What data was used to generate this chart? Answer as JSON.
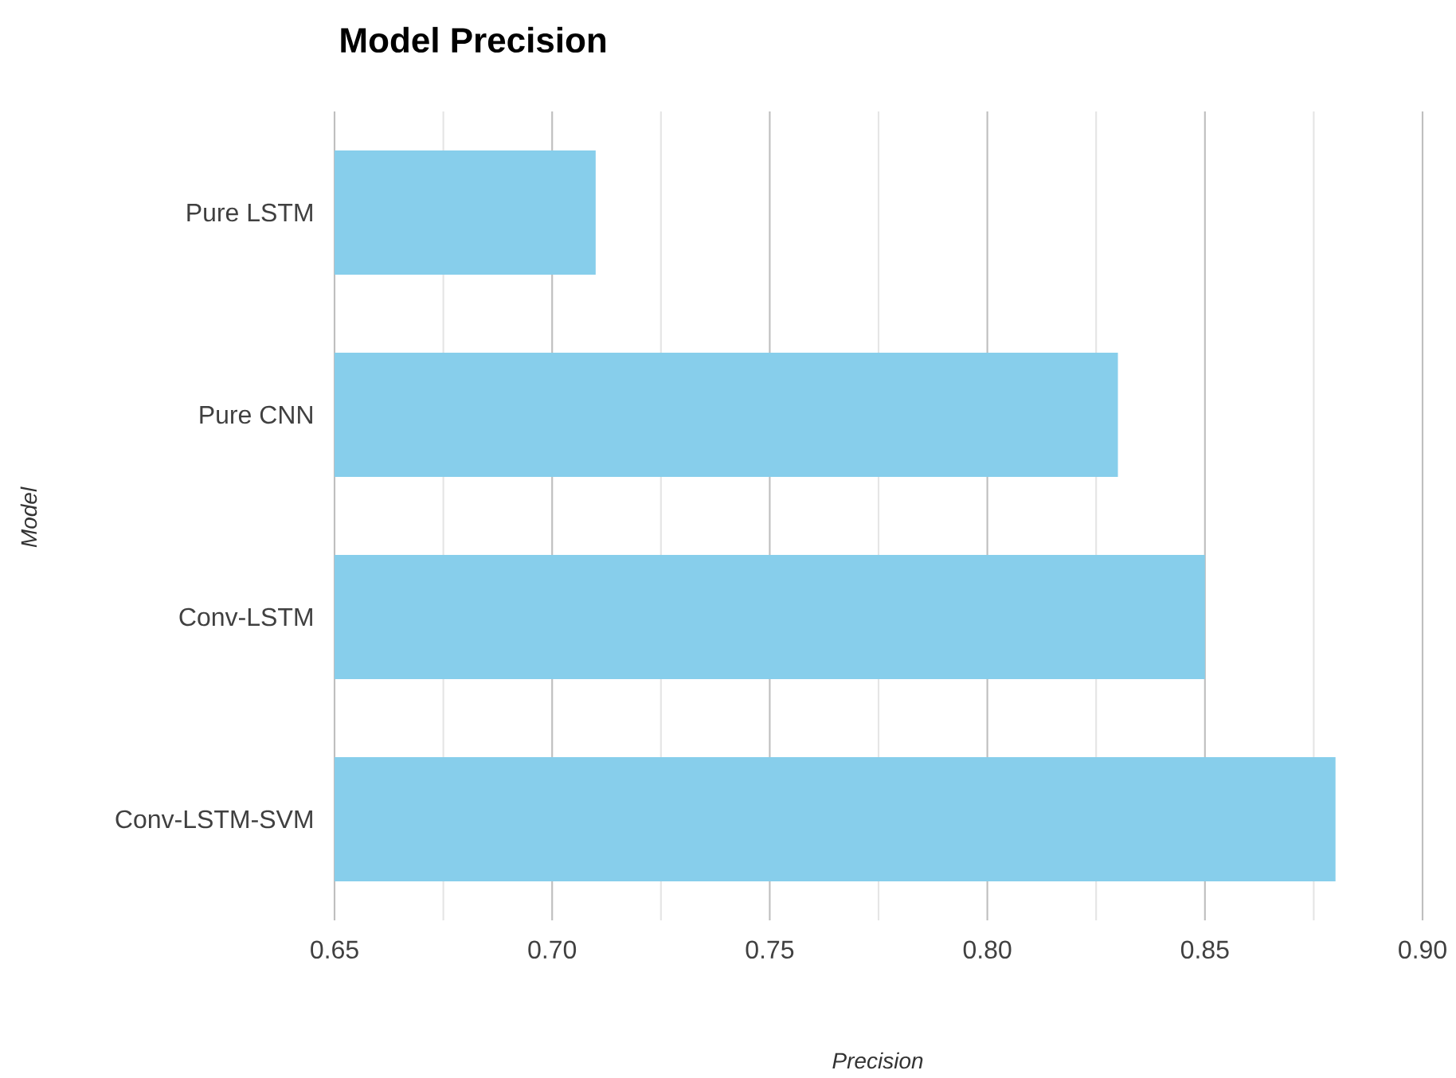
{
  "chart_data": {
    "type": "bar",
    "orientation": "horizontal",
    "title": "Model Precision",
    "xlabel": "Precision",
    "ylabel": "Model",
    "categories": [
      "Pure LSTM",
      "Pure CNN",
      "Conv-LSTM",
      "Conv-LSTM-SVM"
    ],
    "values": [
      0.71,
      0.83,
      0.85,
      0.88
    ],
    "color": "#87ceeb",
    "xlim": [
      0.65,
      0.9
    ],
    "xticks": [
      0.65,
      {
        "value": 0.7,
        "label": "0.70"
      },
      0.75,
      {
        "value": 0.8,
        "label": "0.80"
      },
      0.85,
      {
        "value": 0.9,
        "label": "0.90"
      }
    ],
    "grid": "x"
  }
}
